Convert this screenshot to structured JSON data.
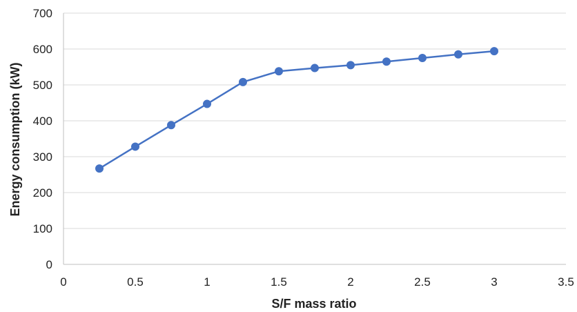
{
  "chart_data": {
    "type": "line",
    "title": "",
    "xlabel": "S/F mass ratio",
    "ylabel": "Energy consumption (kW)",
    "xlim": [
      0,
      3.5
    ],
    "ylim": [
      0,
      700
    ],
    "x_ticks": [
      0,
      0.5,
      1,
      1.5,
      2,
      2.5,
      3,
      3.5
    ],
    "x_tick_labels": [
      "0",
      "0.5",
      "1",
      "1.5",
      "2",
      "2.5",
      "3",
      "3.5"
    ],
    "y_ticks": [
      0,
      100,
      200,
      300,
      400,
      500,
      600,
      700
    ],
    "y_tick_labels": [
      "0",
      "100",
      "200",
      "300",
      "400",
      "500",
      "600",
      "700"
    ],
    "grid": "horizontal",
    "legend": "none",
    "series": [
      {
        "color": "#4472c4",
        "marker": "circle",
        "x": [
          0.25,
          0.5,
          0.75,
          1.0,
          1.25,
          1.5,
          1.75,
          2.0,
          2.25,
          2.5,
          2.75,
          3.0
        ],
        "y": [
          267,
          328,
          388,
          447,
          508,
          538,
          547,
          555,
          565,
          575,
          585,
          594
        ]
      }
    ]
  }
}
